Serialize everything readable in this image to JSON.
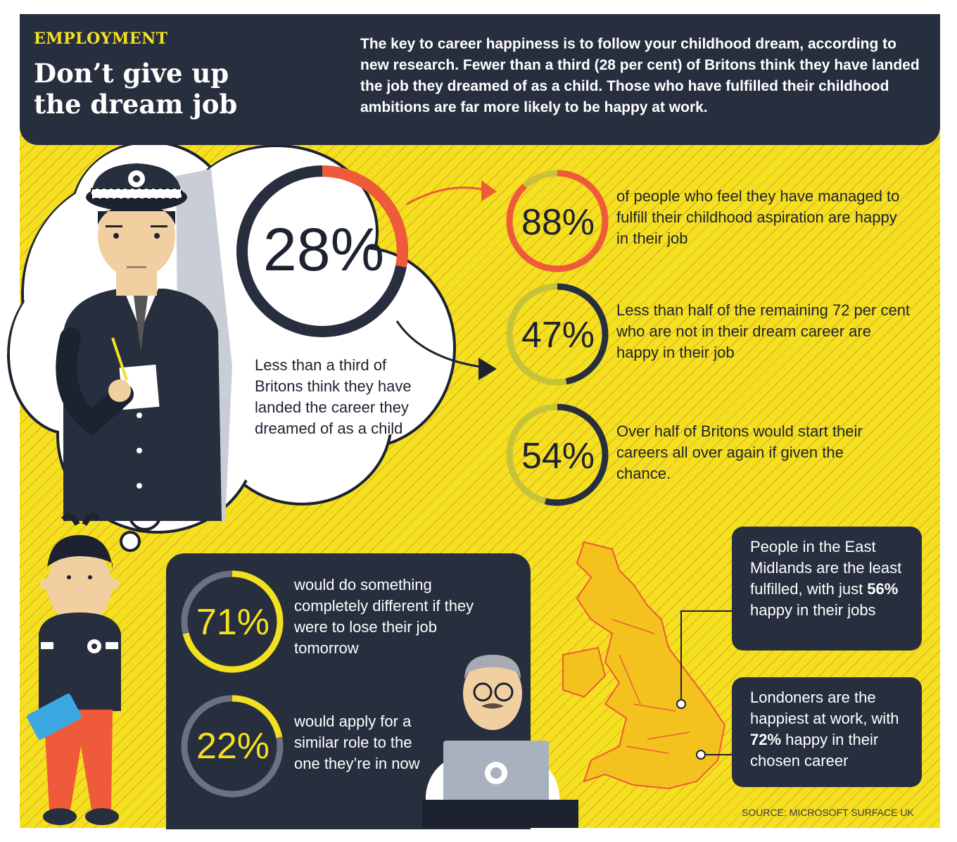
{
  "header": {
    "kicker": "EMPLOYMENT",
    "title": "Don’t give up the dream job",
    "intro": "The key to career happiness is to follow your childhood dream, according to new research. Fewer than a third (28 per cent) of Britons think they have landed the job they dreamed of as a child. Those who have fulfilled their childhood ambitions are far more likely to be happy at work."
  },
  "main_stat": {
    "value_label": "28%",
    "fraction": 0.28,
    "text": "Less than a third of Britons think they have landed the career they dreamed of as a child"
  },
  "right_stats": [
    {
      "value_label": "88%",
      "fraction": 0.88,
      "text": "of people who feel they have managed to fulfill their childhood aspiration are happy in their job",
      "color": "#ee5a3a"
    },
    {
      "value_label": "47%",
      "fraction": 0.47,
      "text": "Less than half of the remaining 72 per cent who are not in their dream career are happy in their job",
      "color": "#272e3e"
    },
    {
      "value_label": "54%",
      "fraction": 0.54,
      "text": "Over half of Britons would start their careers all over again if given the chance.",
      "color": "#272e3e"
    }
  ],
  "dark_stats": [
    {
      "value_label": "71%",
      "fraction": 0.71,
      "text": "would do something completely different if they were to lose their job tomorrow"
    },
    {
      "value_label": "22%",
      "fraction": 0.22,
      "text": "would apply for a similar role to the one they’re in now"
    }
  ],
  "regions": {
    "east_midlands": {
      "before": "People in the East Midlands are the least fulfilled, with just ",
      "highlight": "56%",
      "after": " happy in their jobs"
    },
    "london": {
      "before": "Londoners are the happiest at work, with ",
      "highlight": "72%",
      "after": " happy in their chosen career"
    }
  },
  "source": "SOURCE: MICROSOFT SURFACE UK",
  "colors": {
    "navy": "#272e3e",
    "yellow": "#f3e11f",
    "red": "#ee5a3a",
    "olive_track": "#c8c23a",
    "grey_track": "#6b7180"
  }
}
